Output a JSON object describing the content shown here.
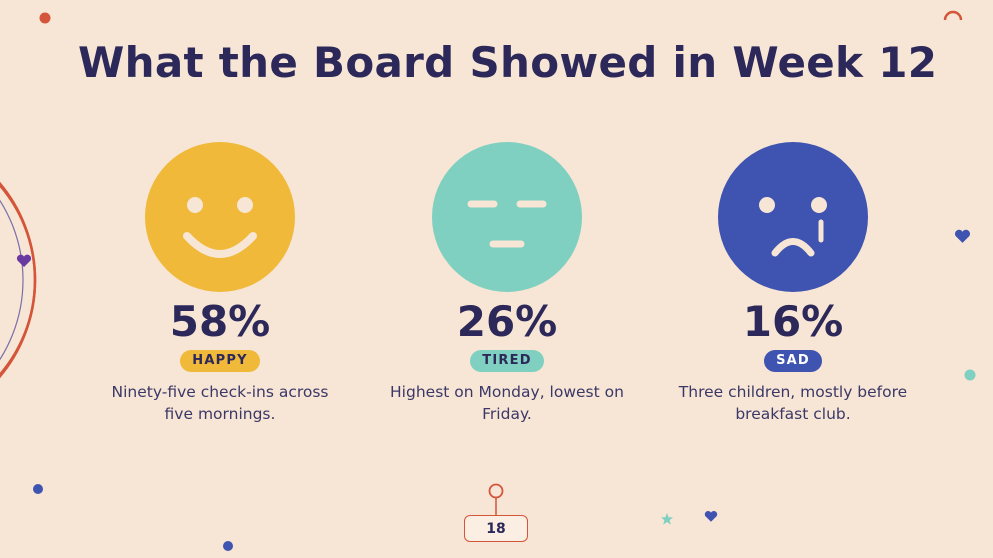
{
  "slide": {
    "title": "What the Board Showed in Week 12",
    "page_number": "18"
  },
  "moods": [
    {
      "face": "happy-face-icon",
      "percent": "58%",
      "label": "HAPPY",
      "description_line1": "Ninety-five check-ins across",
      "description_line2": "five mornings.",
      "color": "#f0b93a"
    },
    {
      "face": "tired-face-icon",
      "percent": "26%",
      "label": "TIRED",
      "description_line1": "Highest on Monday, lowest on",
      "description_line2": "Friday.",
      "color": "#7fd0c0"
    },
    {
      "face": "sad-face-icon",
      "percent": "16%",
      "label": "SAD",
      "description_line1": "Three children, mostly before",
      "description_line2": "breakfast club.",
      "color": "#3f53b0"
    }
  ],
  "colors": {
    "background": "#f7e6d5",
    "title": "#2c2859",
    "accent_red": "#d4553a",
    "accent_navy": "#3f53b0",
    "accent_teal": "#7fd0c0",
    "accent_purple": "#6b3aa0"
  }
}
